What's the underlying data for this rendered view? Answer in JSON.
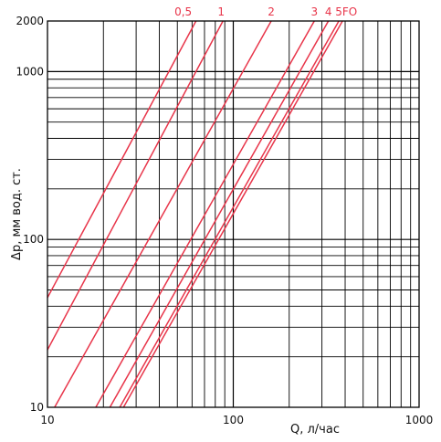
{
  "chart_data": {
    "type": "line",
    "title": "",
    "xlabel": "Q, л/час",
    "ylabel": "Δp, мм вод. ст.",
    "x_scale": "log",
    "y_scale": "log",
    "xlim": [
      10,
      1000
    ],
    "ylim": [
      10,
      2000
    ],
    "x_tick_labels": [
      "10",
      "100",
      "1000"
    ],
    "y_tick_labels": [
      "10",
      "100",
      "1000",
      "2000"
    ],
    "grid": true,
    "colors": {
      "series": "#e8354a",
      "grid": "#000000"
    },
    "series": [
      {
        "name": "0,5",
        "x": [
          10,
          63
        ],
        "y": [
          45,
          2000
        ]
      },
      {
        "name": "1",
        "x": [
          10,
          88
        ],
        "y": [
          22,
          2000
        ]
      },
      {
        "name": "2",
        "x": [
          10,
          160
        ],
        "y": [
          8.4,
          2000
        ]
      },
      {
        "name": "3",
        "x": [
          10,
          273
        ],
        "y": [
          3.1,
          2000
        ]
      },
      {
        "name": "4",
        "x": [
          10,
          325
        ],
        "y": [
          2.2,
          2000
        ]
      },
      {
        "name": "5",
        "x": [
          10,
          370
        ],
        "y": [
          1.74,
          2000
        ]
      },
      {
        "name": "FO",
        "x": [
          10,
          387
        ],
        "y": [
          1.59,
          2000
        ]
      }
    ]
  }
}
